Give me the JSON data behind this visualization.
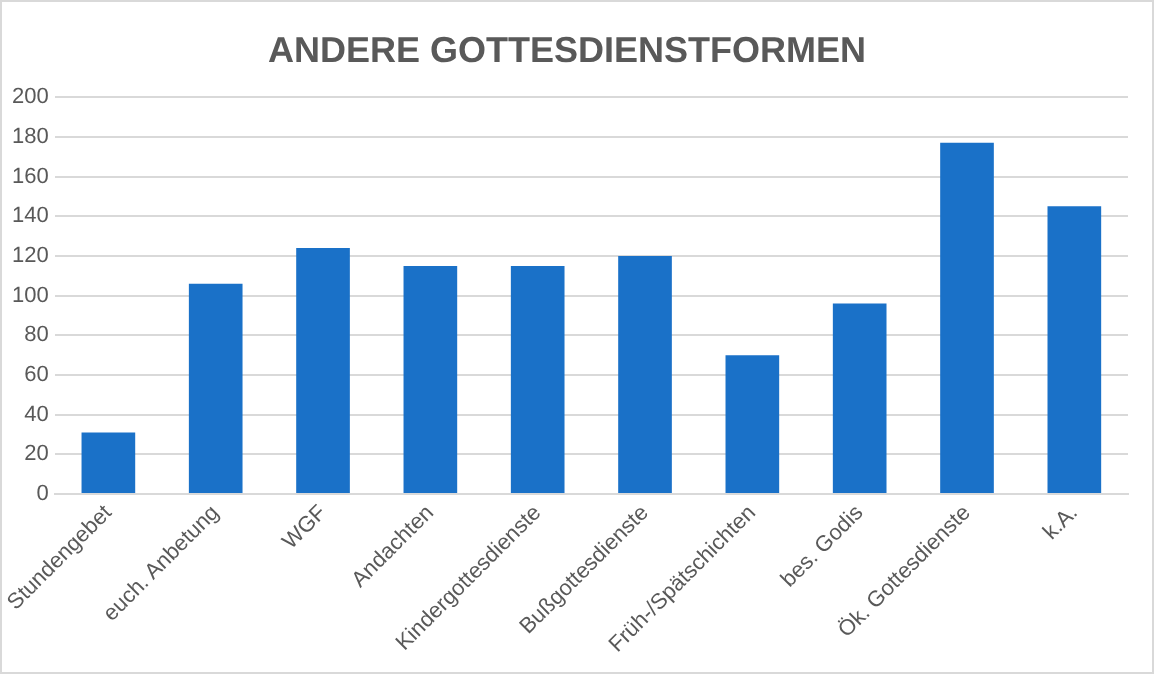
{
  "chart_data": {
    "type": "bar",
    "title": "ANDERE GOTTESDIENSTFORMEN",
    "categories": [
      "Stundengebet",
      "euch. Anbetung",
      "WGF",
      "Andachten",
      "Kindergottesdienste",
      "Bußgottesdienste",
      "Früh-/Spätschichten",
      "bes. Godis",
      "Ök. Gottesdienste",
      "k.A."
    ],
    "values": [
      31,
      106,
      124,
      115,
      115,
      120,
      70,
      96,
      177,
      145
    ],
    "color": "#1a71c8",
    "ylim": [
      0,
      200
    ],
    "yticks": [
      0,
      20,
      40,
      60,
      80,
      100,
      120,
      140,
      160,
      180,
      200
    ],
    "grid": "y",
    "legend": false
  }
}
